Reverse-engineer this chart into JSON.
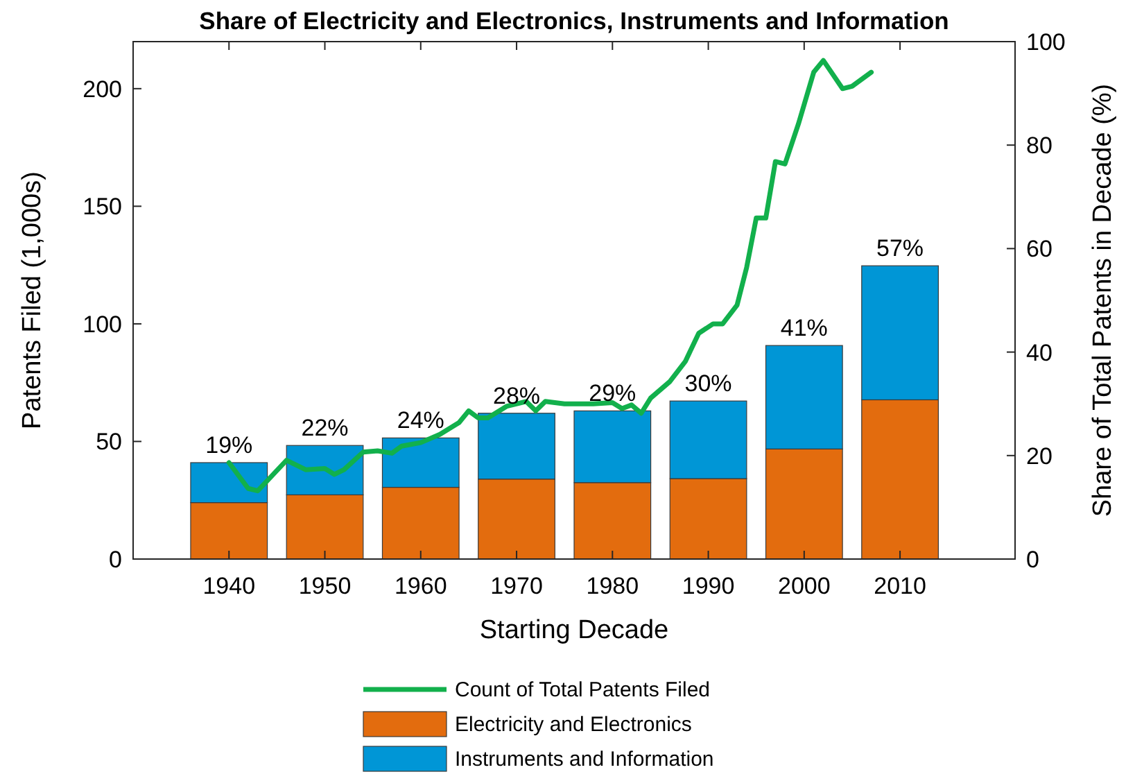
{
  "chart_data": {
    "type": "bar",
    "title": "Share of Electricity and Electronics, Instruments and Information",
    "xlabel": "Starting Decade",
    "ylabel": "Patents Filed (1,000s)",
    "y2label": "Share of Total Patents in Decade (%)",
    "x": [
      1940,
      1950,
      1960,
      1970,
      1980,
      1990,
      2000,
      2010
    ],
    "stacked": true,
    "series": [
      {
        "name": "Electricity and Electronics",
        "color": "#e36c0e",
        "values": [
          24,
          27.3,
          30.5,
          34,
          32.5,
          34.2,
          46.8,
          67.7
        ]
      },
      {
        "name": "Instruments and Information",
        "color": "#0096d6",
        "values": [
          17,
          21,
          21,
          28,
          30.5,
          33,
          44,
          57
        ]
      },
      {
        "name": "Count of Total Patents Filed",
        "type": "line",
        "color": "#12b04c",
        "x": [
          1940,
          1942,
          1943,
          1946,
          1948,
          1950,
          1951,
          1952,
          1954,
          1955.5,
          1957,
          1958,
          1960,
          1962,
          1964,
          1965,
          1966,
          1967,
          1969,
          1971,
          1972,
          1973,
          1975,
          1978,
          1980,
          1981,
          1982,
          1983,
          1984,
          1986,
          1987.6,
          1989,
          1990.5,
          1991.5,
          1993,
          1994,
          1995,
          1996,
          1997,
          1998,
          1999.4,
          2001,
          2002,
          2004,
          2005,
          2007
        ],
        "values": [
          41,
          30,
          29,
          42,
          38,
          38.5,
          36,
          38,
          45.5,
          46,
          45,
          48,
          49.5,
          53,
          58,
          63,
          60,
          60,
          65,
          67,
          63,
          67,
          66,
          66,
          66.5,
          64,
          65.5,
          62,
          68.5,
          75.5,
          84,
          96,
          100,
          100,
          108,
          124,
          145,
          145,
          169,
          168,
          185,
          207,
          212,
          200,
          201,
          207
        ]
      }
    ],
    "xlim": [
      1930,
      2022
    ],
    "xticks": [
      1940,
      1950,
      1960,
      1970,
      1980,
      1990,
      2000,
      2010
    ],
    "ylim": [
      0,
      220
    ],
    "yticks": [
      0,
      50,
      100,
      150,
      200
    ],
    "y2lim": [
      0,
      100
    ],
    "y2ticks": [
      0,
      20,
      40,
      60,
      80,
      100
    ],
    "annotations": [
      {
        "text": "19%",
        "x": 1940,
        "y": 41
      },
      {
        "text": "22%",
        "x": 1950,
        "y": 48.3
      },
      {
        "text": "24%",
        "x": 1960,
        "y": 51.5
      },
      {
        "text": "28%",
        "x": 1970,
        "y": 62
      },
      {
        "text": "29%",
        "x": 1980,
        "y": 63
      },
      {
        "text": "30%",
        "x": 1990,
        "y": 67.2
      },
      {
        "text": "41%",
        "x": 2000,
        "y": 90.8
      },
      {
        "text": "57%",
        "x": 2010,
        "y": 124.7
      }
    ],
    "legend": "bottom",
    "grid": false
  }
}
